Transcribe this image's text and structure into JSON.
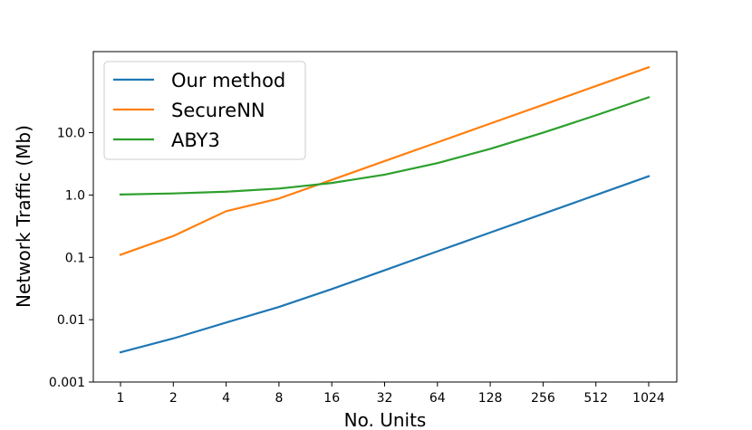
{
  "chart_data": {
    "type": "line",
    "xlabel": "No. Units",
    "ylabel": "Network Traffic (Mb)",
    "x_scale": "log2",
    "y_scale": "log10",
    "x": [
      1,
      2,
      4,
      8,
      16,
      32,
      64,
      128,
      256,
      512,
      1024
    ],
    "x_tick_labels": [
      "1",
      "2",
      "4",
      "8",
      "16",
      "32",
      "64",
      "128",
      "256",
      "512",
      "1024"
    ],
    "y_ticks": [
      0.001,
      0.01,
      0.1,
      1,
      10
    ],
    "y_tick_labels": [
      "0.001",
      "0.01",
      "0.1",
      "1.0",
      "10.0"
    ],
    "ylim": [
      0.001,
      200
    ],
    "legend_position": "top-left",
    "grid": false,
    "series": [
      {
        "name": "Our method",
        "color": "#1f77b4",
        "values": [
          0.003,
          0.005,
          0.009,
          0.016,
          0.031,
          0.062,
          0.125,
          0.25,
          0.5,
          1.0,
          2.0
        ]
      },
      {
        "name": "SecureNN",
        "color": "#ff7f0e",
        "values": [
          0.11,
          0.22,
          0.55,
          0.88,
          1.75,
          3.5,
          7.0,
          14.0,
          28.0,
          56.0,
          112.0
        ]
      },
      {
        "name": "ABY3",
        "color": "#2ca02c",
        "values": [
          1.02,
          1.06,
          1.13,
          1.27,
          1.56,
          2.12,
          3.25,
          5.5,
          10.0,
          19.0,
          37.0
        ]
      }
    ]
  }
}
